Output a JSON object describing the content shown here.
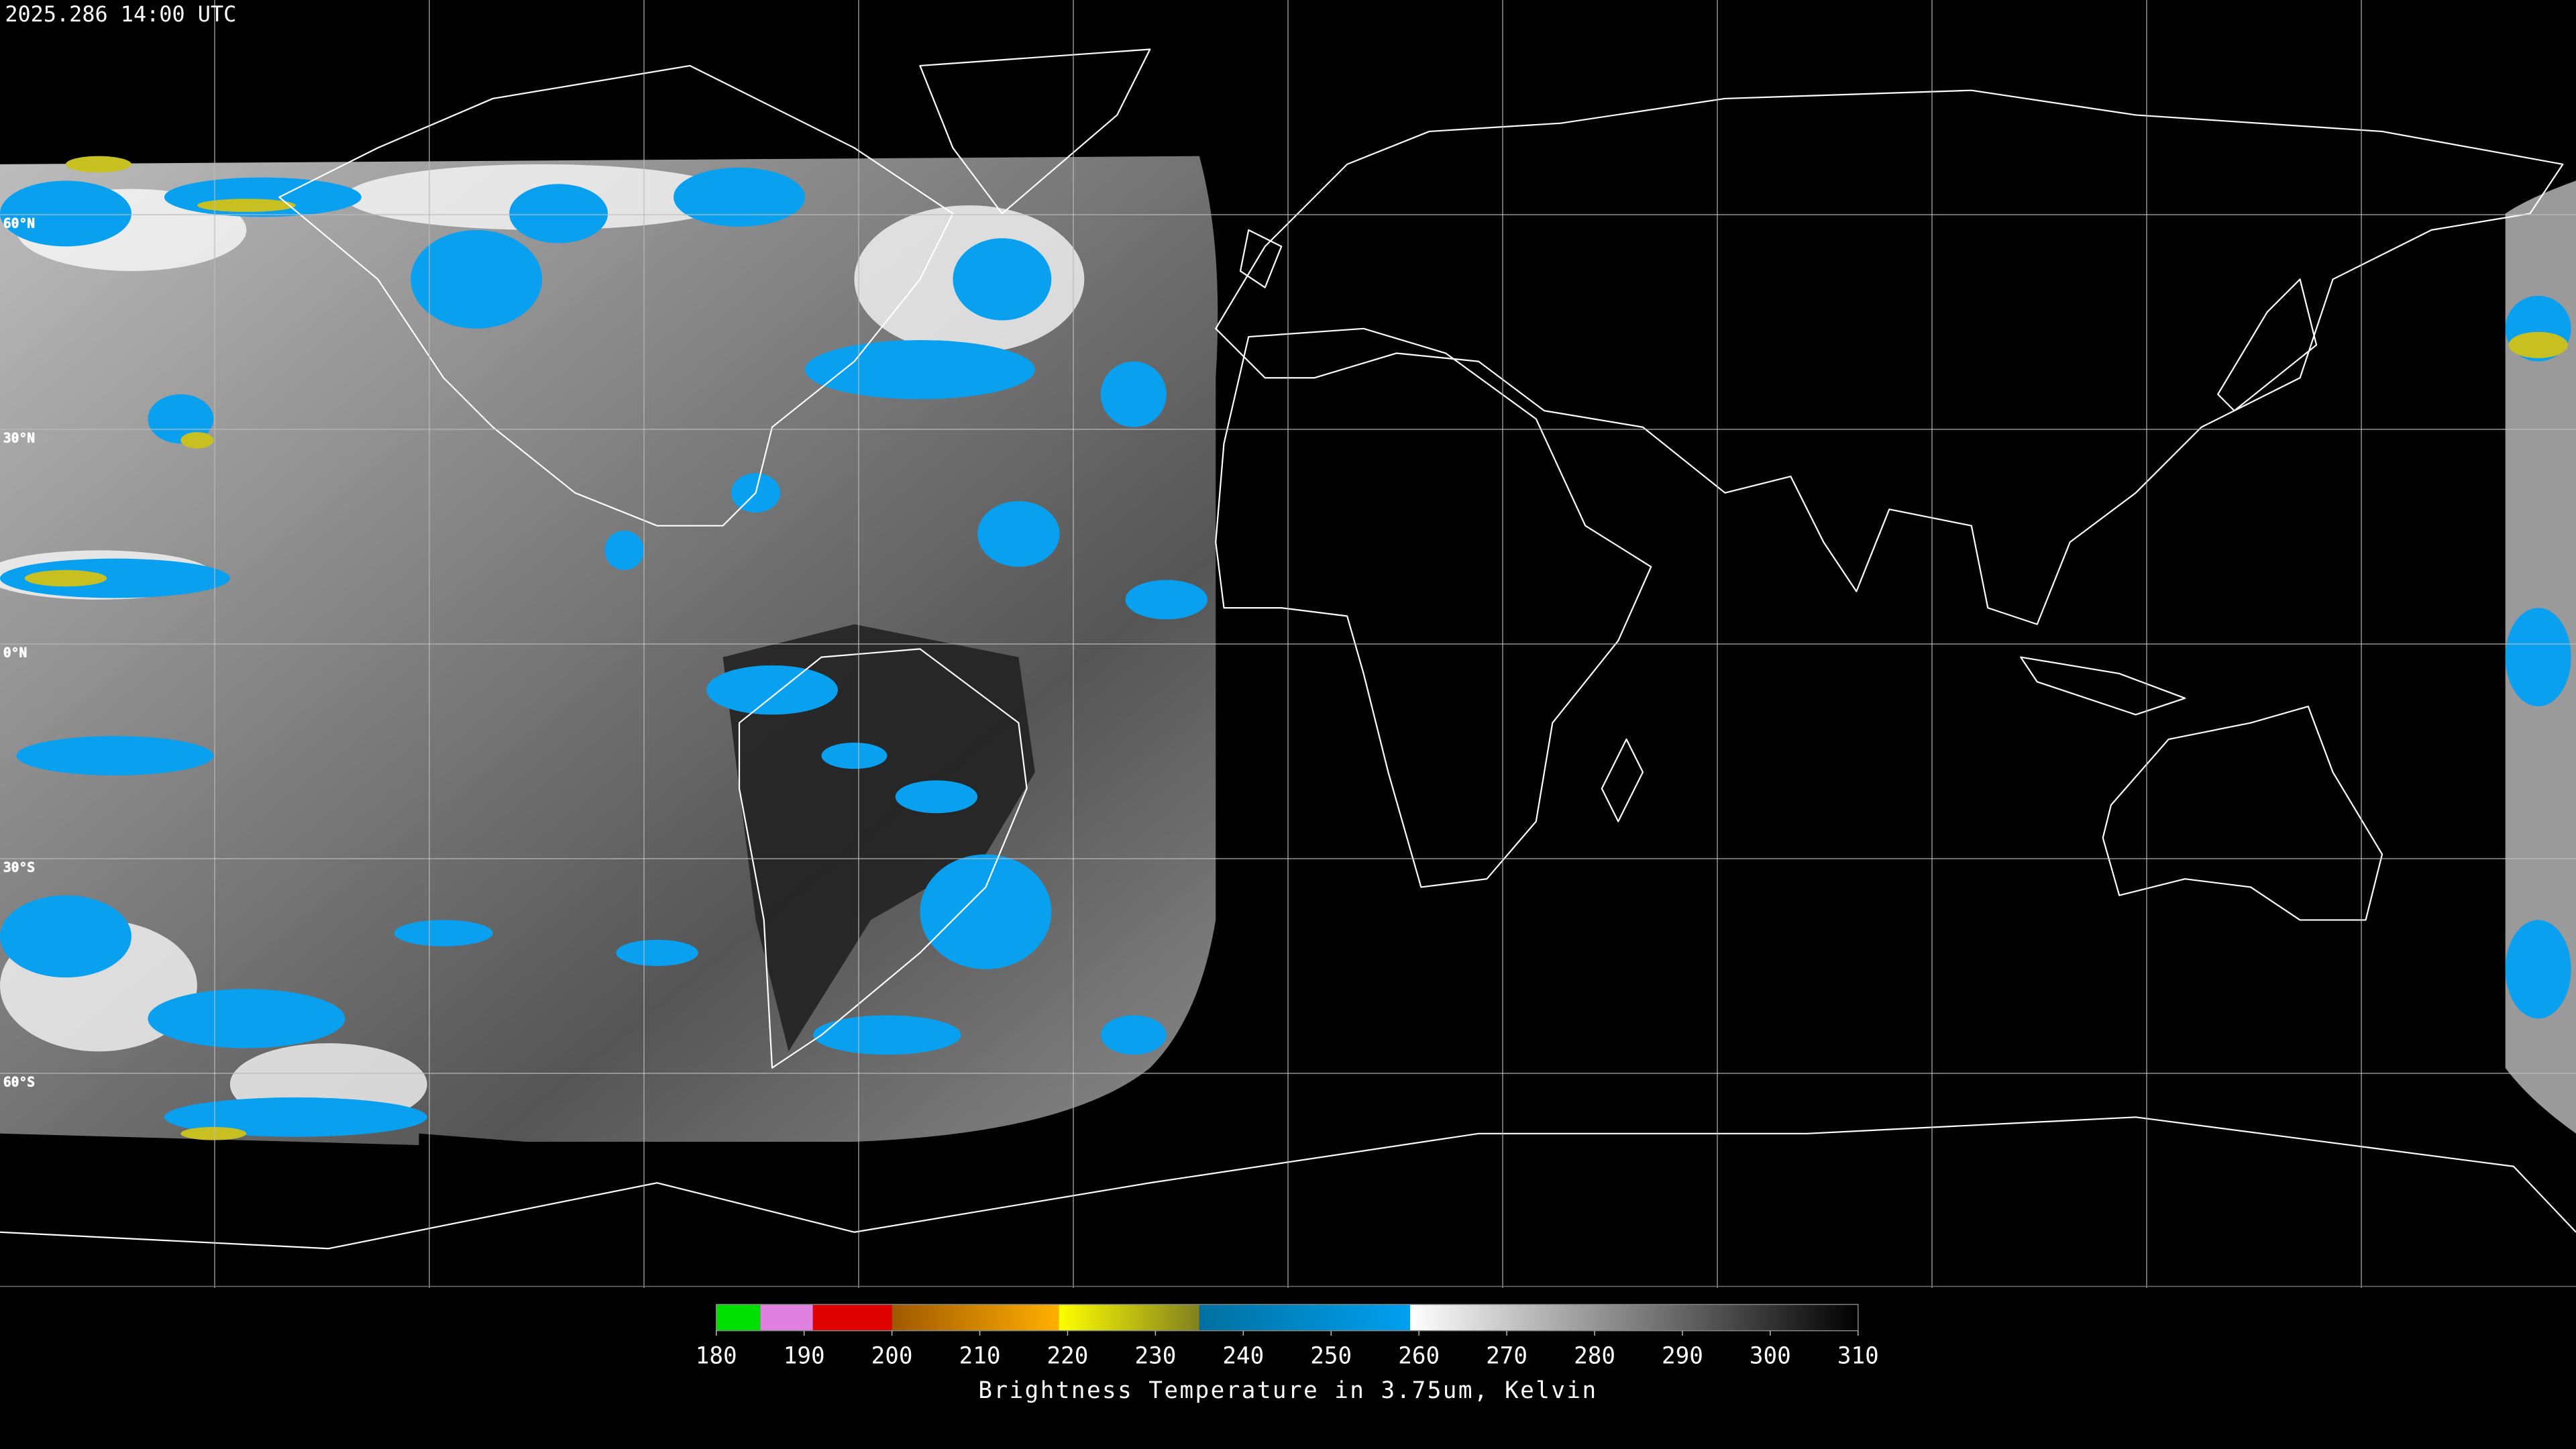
{
  "timestamp": "2025.286 14:00 UTC",
  "map": {
    "lat_lines": [
      {
        "value": 60,
        "label": "60°N"
      },
      {
        "value": 30,
        "label": "30°N"
      },
      {
        "value": 0,
        "label": "0°N"
      },
      {
        "value": -30,
        "label": "30°S"
      },
      {
        "value": -60,
        "label": "60°S"
      }
    ]
  },
  "colorbar": {
    "title": "Brightness Temperature in 3.75um, Kelvin",
    "lim": [
      180,
      310
    ],
    "ticks": [
      180,
      190,
      200,
      210,
      220,
      230,
      240,
      250,
      260,
      270,
      280,
      290,
      300,
      310
    ],
    "segments": [
      {
        "from": 180,
        "to": 185,
        "colors": [
          "#00e000",
          "#00e000"
        ]
      },
      {
        "from": 185,
        "to": 191,
        "colors": [
          "#e080e0",
          "#e080e0"
        ]
      },
      {
        "from": 191,
        "to": 200,
        "colors": [
          "#e00000",
          "#e00000"
        ]
      },
      {
        "from": 200,
        "to": 219,
        "colors": [
          "#a05800",
          "#ffb000"
        ]
      },
      {
        "from": 219,
        "to": 235,
        "colors": [
          "#ffff00",
          "#808020"
        ]
      },
      {
        "from": 235,
        "to": 259,
        "colors": [
          "#0070a0",
          "#00a0f0"
        ]
      },
      {
        "from": 259,
        "to": 310,
        "colors": [
          "#ffffff",
          "#000000"
        ]
      }
    ]
  }
}
